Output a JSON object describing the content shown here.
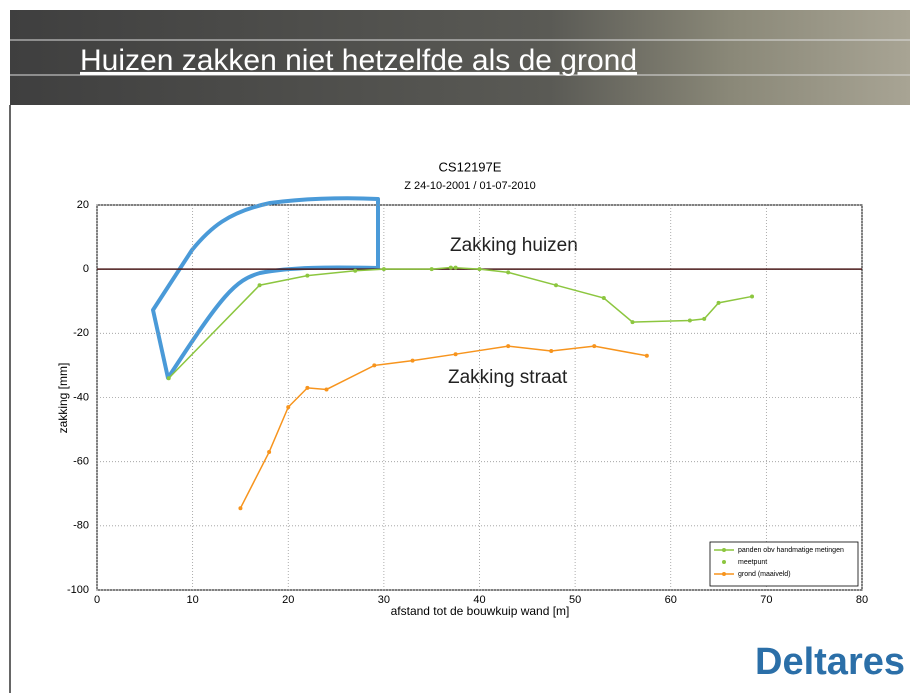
{
  "slide_title": "Huizen zakken niet hetzelfde als de grond",
  "logo": "Deltares",
  "chart_data": {
    "type": "line",
    "title": "CS12197E",
    "subtitle": "Z 24-10-2001 / 01-07-2010",
    "xlabel": "afstand tot de bouwkuip wand [m]",
    "ylabel": "zakking [mm]",
    "annotations": [
      "Zakking huizen",
      "Zakking straat"
    ],
    "xlim": [
      0,
      80
    ],
    "xticks": [
      0,
      10,
      20,
      30,
      40,
      50,
      60,
      70,
      80
    ],
    "ylim": [
      -100,
      20
    ],
    "yticks": [
      -100,
      -80,
      -60,
      -40,
      -20,
      0,
      20
    ],
    "grid": true,
    "legend": "lower right",
    "series": [
      {
        "name": "panden obv handmatige metingen",
        "color": "#8cc63f",
        "line": true,
        "x": [
          7.5,
          17,
          22,
          27,
          30,
          35,
          37,
          40,
          43,
          48,
          53,
          56,
          62,
          63.5,
          65,
          68.5
        ],
        "values": [
          -34,
          -5,
          -2,
          -0.5,
          0,
          0,
          0.5,
          0,
          -1,
          -5,
          -9,
          -16.5,
          -16,
          -15.5,
          -10.5,
          -8.5
        ]
      },
      {
        "name": "meetpunt",
        "color": "#8cc63f",
        "line": false,
        "x": [
          37.5
        ],
        "values": [
          0.5
        ]
      },
      {
        "name": "grond (maaiveld)",
        "color": "#f7941d",
        "line": true,
        "x": [
          15,
          18,
          20,
          22,
          24,
          29,
          33,
          37.5,
          43,
          47.5,
          52,
          57.5
        ],
        "values": [
          -74.5,
          -57,
          -43,
          -37,
          -37.5,
          -30,
          -28.5,
          -26.5,
          -24,
          -25.5,
          -24,
          -27
        ]
      }
    ]
  }
}
